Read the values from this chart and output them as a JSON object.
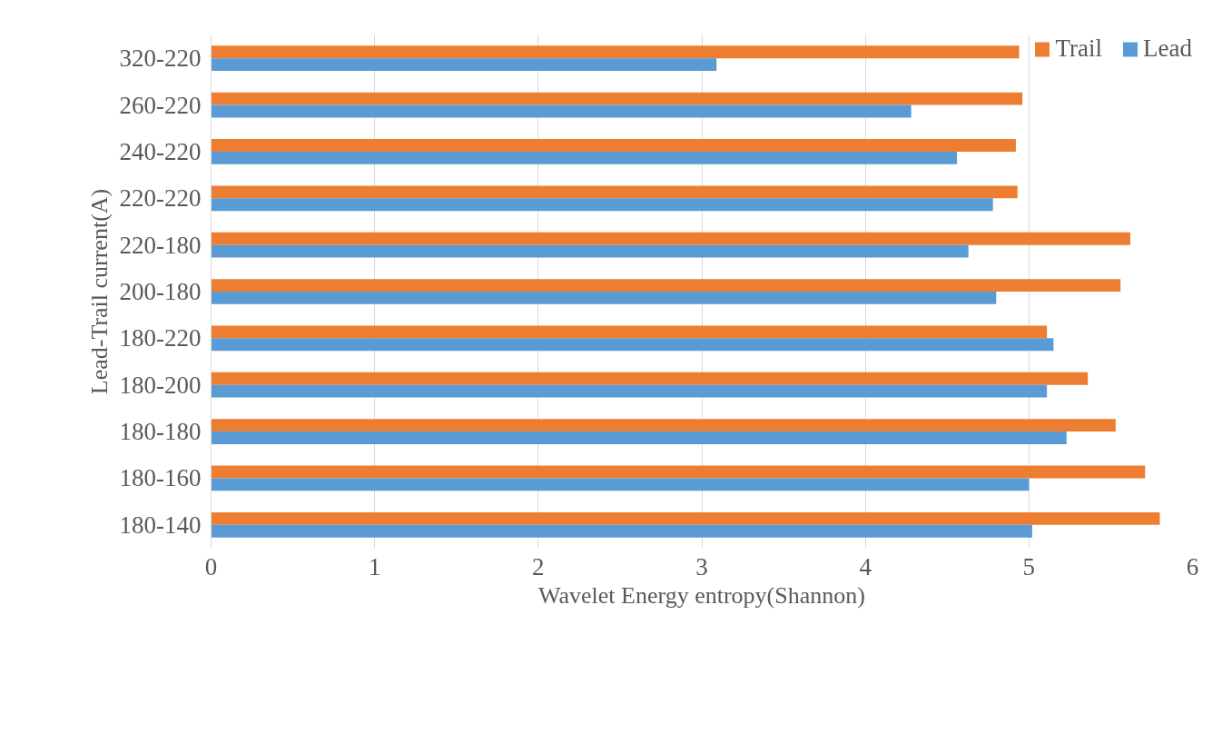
{
  "chart_data": {
    "type": "bar",
    "orientation": "horizontal",
    "xlabel": "Wavelet Energy entropy(Shannon)",
    "ylabel": "Lead-Trail current(A)",
    "categories": [
      "320-220",
      "260-220",
      "240-220",
      "220-220",
      "220-180",
      "200-180",
      "180-220",
      "180-200",
      "180-180",
      "180-160",
      "180-140"
    ],
    "series": [
      {
        "name": "Trail",
        "color": "#ed7d31",
        "values": [
          4.94,
          4.96,
          4.92,
          4.93,
          5.62,
          5.56,
          5.11,
          5.36,
          5.53,
          5.71,
          5.8
        ]
      },
      {
        "name": "Lead",
        "color": "#5b9bd5",
        "values": [
          3.09,
          4.28,
          4.56,
          4.78,
          4.63,
          4.8,
          5.15,
          5.11,
          5.23,
          5.0,
          5.02
        ]
      }
    ],
    "xlim": [
      0,
      6
    ],
    "xticks": [
      0,
      1,
      2,
      3,
      4,
      5,
      6
    ],
    "grid": "x",
    "legend": "top right"
  }
}
